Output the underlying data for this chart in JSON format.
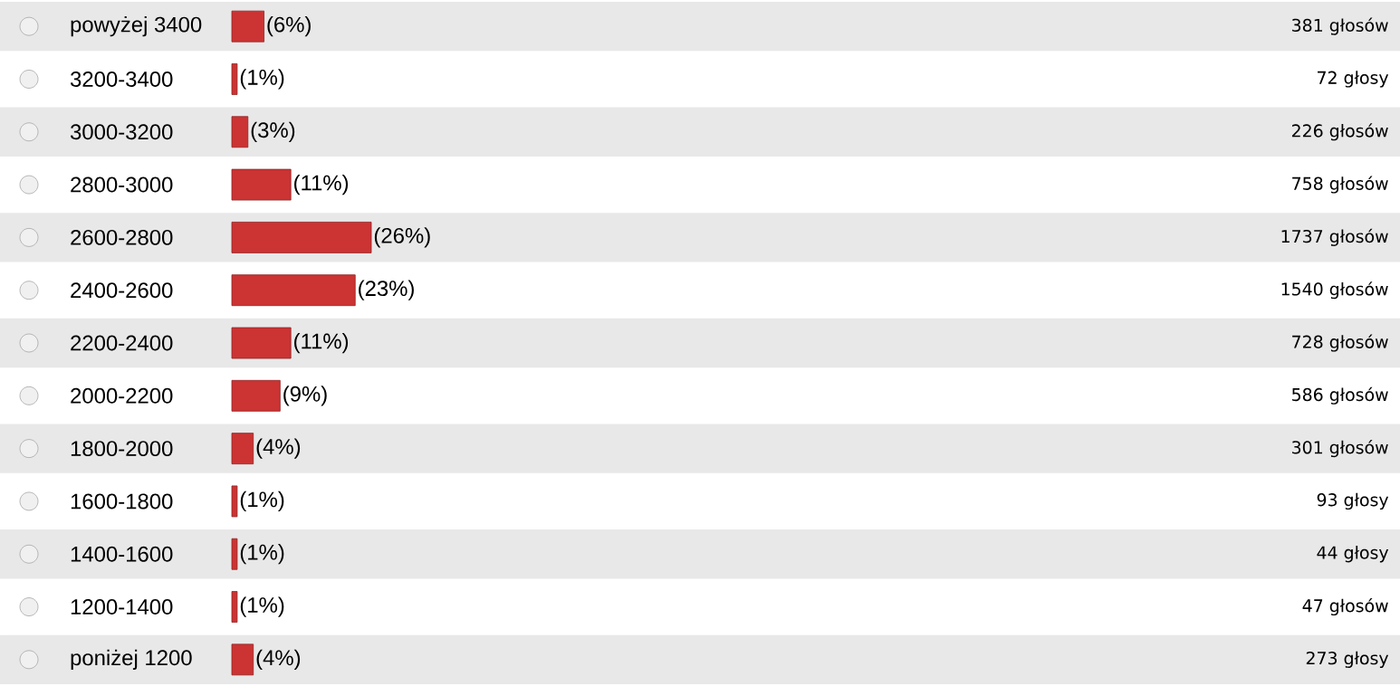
{
  "chart_data": {
    "type": "bar",
    "orientation": "horizontal",
    "categories": [
      "powyżej 3400",
      "3200-3400",
      "3000-3200",
      "2800-3000",
      "2600-2800",
      "2400-2600",
      "2200-2400",
      "2000-2200",
      "1800-2000",
      "1600-1800",
      "1400-1600",
      "1200-1400",
      "poniżej 1200"
    ],
    "values": [
      6,
      1,
      3,
      11,
      26,
      23,
      11,
      9,
      4,
      1,
      1,
      1,
      4
    ],
    "value_labels": [
      "(6%)",
      "(1%)",
      "(3%)",
      "(11%)",
      "(26%)",
      "(23%)",
      "(11%)",
      "(9%)",
      "(4%)",
      "(1%)",
      "(1%)",
      "(1%)",
      "(4%)"
    ],
    "color": "#cc3333",
    "annotations": [
      "381 głosów",
      "72 głosy",
      "226 głosów",
      "758 głosów",
      "1737 głosów",
      "1540 głosów",
      "728 głosów",
      "586 głosów",
      "301 głosów",
      "93 głosy",
      "44 głosy",
      "47 głosów",
      "273 głosy"
    ]
  }
}
